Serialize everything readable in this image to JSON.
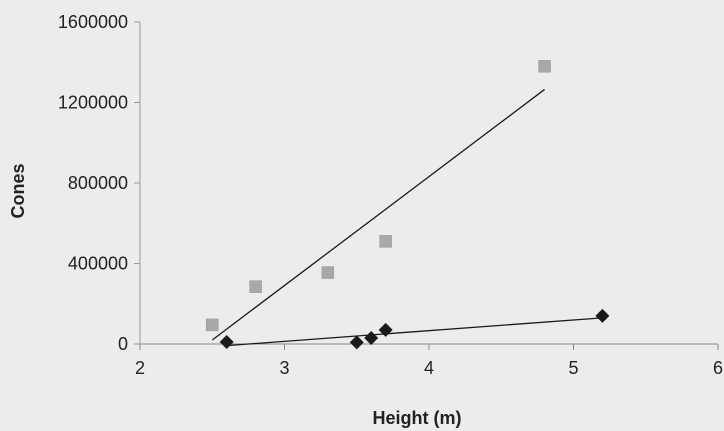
{
  "chart_data": {
    "type": "scatter",
    "xlabel": "Height (m)",
    "ylabel": "Cones",
    "xlim": [
      2,
      6
    ],
    "ylim": [
      0,
      1600000
    ],
    "xticks": [
      2,
      3,
      4,
      5,
      6
    ],
    "yticks": [
      0,
      400000,
      800000,
      1200000,
      1600000
    ],
    "xtick_labels": [
      "2",
      "3",
      "4",
      "5",
      "6"
    ],
    "ytick_labels": [
      "0",
      "400000",
      "800000",
      "1200000",
      "1600000"
    ],
    "grid": false,
    "series": [
      {
        "marker": "square",
        "color": "#a8a8a8",
        "points": [
          [
            2.5,
            95000
          ],
          [
            2.8,
            285000
          ],
          [
            3.3,
            355000
          ],
          [
            3.7,
            510000
          ],
          [
            4.8,
            1380000
          ]
        ],
        "trendline": [
          [
            2.5,
            20000
          ],
          [
            4.8,
            1265000
          ]
        ]
      },
      {
        "marker": "diamond",
        "color": "#1a1a1a",
        "points": [
          [
            2.6,
            10000
          ],
          [
            3.5,
            8000
          ],
          [
            3.6,
            30000
          ],
          [
            3.7,
            70000
          ],
          [
            5.2,
            140000
          ]
        ],
        "trendline": [
          [
            2.6,
            -8000
          ],
          [
            5.2,
            130000
          ]
        ]
      }
    ]
  }
}
